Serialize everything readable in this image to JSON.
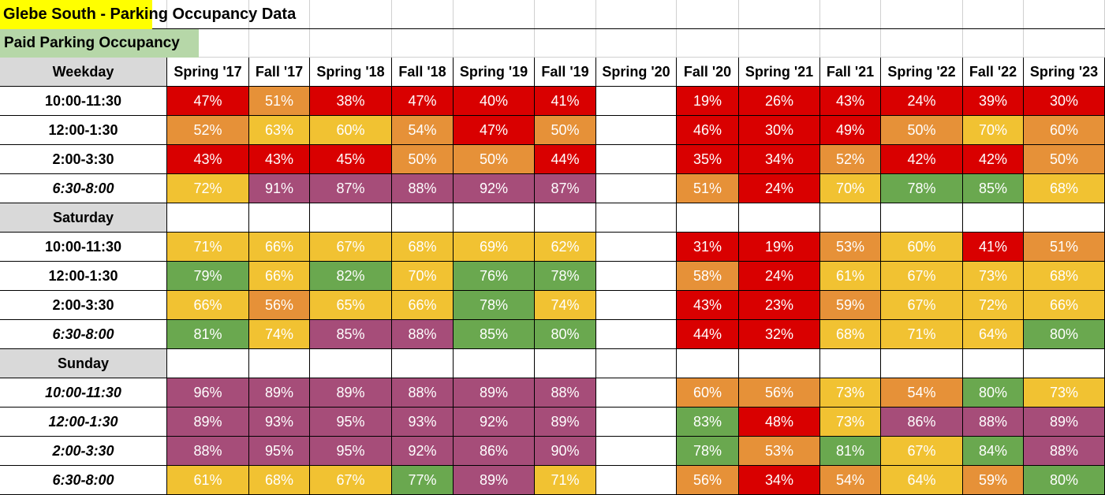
{
  "header": {
    "title": "Glebe South - Parking Occupancy Data",
    "title_color": "#ffff00",
    "subtitle": "Paid Parking Occupancy",
    "subtitle_color": "#b6d7a8"
  },
  "table": {
    "columns": [
      "Spring '17",
      "Fall '17",
      "Spring '18",
      "Fall '18",
      "Spring '19",
      "Fall '19",
      "Spring '20",
      "Fall '20",
      "Spring '21",
      "Fall '21",
      "Spring '22",
      "Fall '22",
      "Spring '23"
    ],
    "sections": [
      {
        "label": "Weekday",
        "rows": [
          {
            "label": "10:00-11:30",
            "italic": false,
            "cells": [
              "47%",
              "51%",
              "38%",
              "47%",
              "40%",
              "41%",
              null,
              "19%",
              "26%",
              "43%",
              "24%",
              "39%",
              "30%"
            ],
            "colors": [
              "#d90000",
              "#e69138",
              "#d90000",
              "#d90000",
              "#d90000",
              "#d90000",
              null,
              "#d90000",
              "#d90000",
              "#d90000",
              "#d90000",
              "#d90000",
              "#d90000"
            ]
          },
          {
            "label": "12:00-1:30",
            "italic": false,
            "cells": [
              "52%",
              "63%",
              "60%",
              "54%",
              "47%",
              "50%",
              null,
              "46%",
              "30%",
              "49%",
              "50%",
              "70%",
              "60%"
            ],
            "colors": [
              "#e69138",
              "#f1c232",
              "#f1c232",
              "#e69138",
              "#d90000",
              "#e69138",
              null,
              "#d90000",
              "#d90000",
              "#d90000",
              "#e69138",
              "#f1c232",
              "#e69138"
            ]
          },
          {
            "label": "2:00-3:30",
            "italic": false,
            "cells": [
              "43%",
              "43%",
              "45%",
              "50%",
              "50%",
              "44%",
              null,
              "35%",
              "34%",
              "52%",
              "42%",
              "42%",
              "50%"
            ],
            "colors": [
              "#d90000",
              "#d90000",
              "#d90000",
              "#e69138",
              "#e69138",
              "#d90000",
              null,
              "#d90000",
              "#d90000",
              "#e69138",
              "#d90000",
              "#d90000",
              "#e69138"
            ]
          },
          {
            "label": "6:30-8:00",
            "italic": true,
            "cells": [
              "72%",
              "91%",
              "87%",
              "88%",
              "92%",
              "87%",
              null,
              "51%",
              "24%",
              "70%",
              "78%",
              "85%",
              "68%"
            ],
            "colors": [
              "#f1c232",
              "#a64d79",
              "#a64d79",
              "#a64d79",
              "#a64d79",
              "#a64d79",
              null,
              "#e69138",
              "#d90000",
              "#f1c232",
              "#6aa84f",
              "#6aa84f",
              "#f1c232"
            ]
          }
        ]
      },
      {
        "label": "Saturday",
        "rows": [
          {
            "label": "10:00-11:30",
            "italic": false,
            "cells": [
              "71%",
              "66%",
              "67%",
              "68%",
              "69%",
              "62%",
              null,
              "31%",
              "19%",
              "53%",
              "60%",
              "41%",
              "51%"
            ],
            "colors": [
              "#f1c232",
              "#f1c232",
              "#f1c232",
              "#f1c232",
              "#f1c232",
              "#f1c232",
              null,
              "#d90000",
              "#d90000",
              "#e69138",
              "#f1c232",
              "#d90000",
              "#e69138"
            ]
          },
          {
            "label": "12:00-1:30",
            "italic": false,
            "cells": [
              "79%",
              "66%",
              "82%",
              "70%",
              "76%",
              "78%",
              null,
              "58%",
              "24%",
              "61%",
              "67%",
              "73%",
              "68%"
            ],
            "colors": [
              "#6aa84f",
              "#f1c232",
              "#6aa84f",
              "#f1c232",
              "#6aa84f",
              "#6aa84f",
              null,
              "#e69138",
              "#d90000",
              "#f1c232",
              "#f1c232",
              "#f1c232",
              "#f1c232"
            ]
          },
          {
            "label": "2:00-3:30",
            "italic": false,
            "cells": [
              "66%",
              "56%",
              "65%",
              "66%",
              "78%",
              "74%",
              null,
              "43%",
              "23%",
              "59%",
              "67%",
              "72%",
              "66%"
            ],
            "colors": [
              "#f1c232",
              "#e69138",
              "#f1c232",
              "#f1c232",
              "#6aa84f",
              "#f1c232",
              null,
              "#d90000",
              "#d90000",
              "#e69138",
              "#f1c232",
              "#f1c232",
              "#f1c232"
            ]
          },
          {
            "label": "6:30-8:00",
            "italic": true,
            "cells": [
              "81%",
              "74%",
              "85%",
              "88%",
              "85%",
              "80%",
              null,
              "44%",
              "32%",
              "68%",
              "71%",
              "64%",
              "80%"
            ],
            "colors": [
              "#6aa84f",
              "#f1c232",
              "#a64d79",
              "#a64d79",
              "#6aa84f",
              "#6aa84f",
              null,
              "#d90000",
              "#d90000",
              "#f1c232",
              "#f1c232",
              "#f1c232",
              "#6aa84f"
            ]
          }
        ]
      },
      {
        "label": "Sunday",
        "rows": [
          {
            "label": "10:00-11:30",
            "italic": true,
            "cells": [
              "96%",
              "89%",
              "89%",
              "88%",
              "89%",
              "88%",
              null,
              "60%",
              "56%",
              "73%",
              "54%",
              "80%",
              "73%"
            ],
            "colors": [
              "#a64d79",
              "#a64d79",
              "#a64d79",
              "#a64d79",
              "#a64d79",
              "#a64d79",
              null,
              "#e69138",
              "#e69138",
              "#f1c232",
              "#e69138",
              "#6aa84f",
              "#f1c232"
            ]
          },
          {
            "label": "12:00-1:30",
            "italic": true,
            "cells": [
              "89%",
              "93%",
              "95%",
              "93%",
              "92%",
              "89%",
              null,
              "83%",
              "48%",
              "73%",
              "86%",
              "88%",
              "89%"
            ],
            "colors": [
              "#a64d79",
              "#a64d79",
              "#a64d79",
              "#a64d79",
              "#a64d79",
              "#a64d79",
              null,
              "#6aa84f",
              "#d90000",
              "#f1c232",
              "#a64d79",
              "#a64d79",
              "#a64d79"
            ]
          },
          {
            "label": "2:00-3:30",
            "italic": true,
            "cells": [
              "88%",
              "95%",
              "95%",
              "92%",
              "86%",
              "90%",
              null,
              "78%",
              "53%",
              "81%",
              "67%",
              "84%",
              "88%"
            ],
            "colors": [
              "#a64d79",
              "#a64d79",
              "#a64d79",
              "#a64d79",
              "#a64d79",
              "#a64d79",
              null,
              "#6aa84f",
              "#e69138",
              "#6aa84f",
              "#f1c232",
              "#6aa84f",
              "#a64d79"
            ]
          },
          {
            "label": "6:30-8:00",
            "italic": true,
            "cells": [
              "61%",
              "68%",
              "67%",
              "77%",
              "89%",
              "71%",
              null,
              "56%",
              "34%",
              "54%",
              "64%",
              "59%",
              "80%"
            ],
            "colors": [
              "#f1c232",
              "#f1c232",
              "#f1c232",
              "#6aa84f",
              "#a64d79",
              "#f1c232",
              null,
              "#e69138",
              "#d90000",
              "#e69138",
              "#f1c232",
              "#e69138",
              "#6aa84f"
            ]
          }
        ]
      }
    ]
  }
}
